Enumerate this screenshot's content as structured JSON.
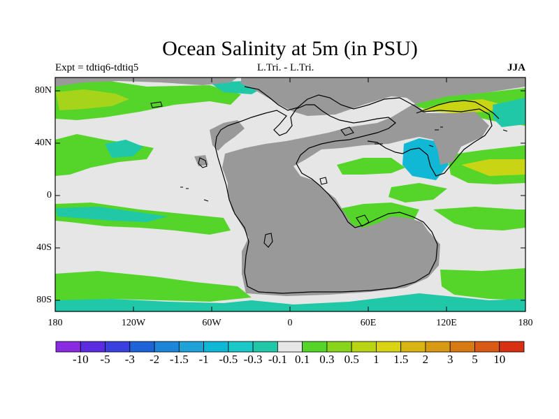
{
  "header": {
    "title": "Ocean Salinity at 5m (in PSU)",
    "left": "Expt = tdtiq6-tdtiq5",
    "center": "L.Tri. - L.Tri.",
    "right": "JJA"
  },
  "axes": {
    "x_ticks": [
      "180",
      "120W",
      "60W",
      "0",
      "60E",
      "120E",
      "180"
    ],
    "y_ticks": [
      "80N",
      "40N",
      "0",
      "40S",
      "80S"
    ]
  },
  "colorbar": {
    "labels": [
      "-10",
      "-5",
      "-3",
      "-2",
      "-1.5",
      "-1",
      "-0.5",
      "-0.3",
      "-0.1",
      "0.1",
      "0.3",
      "0.5",
      "1",
      "1.5",
      "2",
      "3",
      "5",
      "10"
    ],
    "colors": [
      "#8a2be2",
      "#5a2ee0",
      "#3a3fe0",
      "#1e63d8",
      "#1d86d8",
      "#1fa2d8",
      "#10b8d6",
      "#1ac8c8",
      "#20c8a8",
      "#e6e6e6",
      "#55d42a",
      "#88d41a",
      "#b8d414",
      "#d8d414",
      "#d8b414",
      "#d89a14",
      "#d87a14",
      "#d85a14",
      "#d83014"
    ]
  },
  "map_colors": {
    "land": "#999999",
    "neutral": "#e6e6e6",
    "green": "#55d42a",
    "lime": "#a6d41a",
    "yellowgreen": "#c8d414",
    "teal": "#20c8a8",
    "cyan": "#10b8d6",
    "blue": "#1d86d8"
  }
}
